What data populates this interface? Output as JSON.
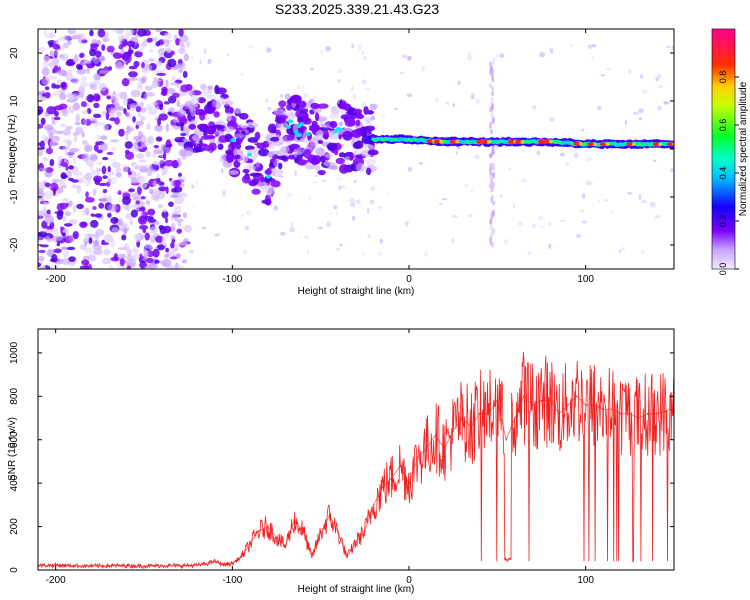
{
  "title": "S233.2025.339.21.43.G23",
  "colors": {
    "snr_line": "#ee2222",
    "spec_bg": "#ffffff",
    "axis": "#000000"
  },
  "chart_data": [
    {
      "type": "heatmap",
      "title": "S233.2025.339.21.43.G23",
      "xlabel": "Height of straight line (km)",
      "ylabel": "Frequency (Hz)",
      "xlim": [
        -210,
        150
      ],
      "ylim": [
        -25,
        25
      ],
      "xticks": [
        -200,
        -100,
        0,
        100
      ],
      "yticks": [
        -20,
        -10,
        0,
        10,
        20
      ],
      "xticklabels": [
        "-200",
        "-100",
        "0",
        "100"
      ],
      "yticklabels": [
        "-20",
        "-10",
        "0",
        "10",
        "20"
      ],
      "colorbar": {
        "label": "Normalized spectral amplitude",
        "range": [
          0,
          1
        ],
        "ticks": [
          0.0,
          0.2,
          0.4,
          0.6,
          0.8
        ],
        "ticklabels": [
          "0.0",
          "0.2",
          "0.4",
          "0.6",
          "0.8"
        ]
      },
      "signal_track": [
        {
          "x": -125,
          "freq": 6
        },
        {
          "x": -110,
          "freq": 7
        },
        {
          "x": -100,
          "freq": 2
        },
        {
          "x": -90,
          "freq": -1
        },
        {
          "x": -80,
          "freq": -5
        },
        {
          "x": -70,
          "freq": 5
        },
        {
          "x": -60,
          "freq": 4
        },
        {
          "x": -50,
          "freq": 2
        },
        {
          "x": -40,
          "freq": 3
        },
        {
          "x": -20,
          "freq": 2
        },
        {
          "x": 0,
          "freq": 2
        },
        {
          "x": 20,
          "freq": 1.5
        },
        {
          "x": 40,
          "freq": 1.5
        },
        {
          "x": 60,
          "freq": 1.5
        },
        {
          "x": 80,
          "freq": 1.5
        },
        {
          "x": 100,
          "freq": 1
        },
        {
          "x": 120,
          "freq": 1
        },
        {
          "x": 150,
          "freq": 1
        }
      ]
    },
    {
      "type": "line",
      "xlabel": "Height of straight line (km)",
      "ylabel": "SNR (10 * v/v)",
      "xlim": [
        -210,
        150
      ],
      "ylim": [
        0,
        1110
      ],
      "xticks": [
        -200,
        -100,
        0,
        100
      ],
      "yticks": [
        0,
        200,
        400,
        600,
        800,
        1000
      ],
      "xticklabels": [
        "-200",
        "-100",
        "0",
        "100"
      ],
      "yticklabels": [
        "0",
        "200",
        "400",
        "600",
        "800",
        "1000"
      ],
      "series": [
        {
          "name": "SNR",
          "x": [
            -210,
            -200,
            -190,
            -180,
            -170,
            -160,
            -150,
            -140,
            -130,
            -120,
            -115,
            -110,
            -105,
            -100,
            -95,
            -90,
            -85,
            -80,
            -75,
            -70,
            -65,
            -60,
            -55,
            -50,
            -45,
            -40,
            -35,
            -30,
            -25,
            -20,
            -15,
            -10,
            -5,
            0,
            5,
            10,
            15,
            20,
            25,
            30,
            35,
            40,
            45,
            50,
            55,
            60,
            65,
            70,
            75,
            80,
            85,
            90,
            95,
            100,
            105,
            110,
            115,
            120,
            125,
            130,
            135,
            140,
            145,
            150
          ],
          "values": [
            20,
            22,
            20,
            18,
            20,
            20,
            18,
            20,
            20,
            22,
            28,
            40,
            25,
            30,
            60,
            120,
            180,
            200,
            150,
            110,
            230,
            180,
            60,
            170,
            250,
            170,
            60,
            130,
            180,
            300,
            380,
            420,
            480,
            400,
            520,
            560,
            620,
            560,
            640,
            700,
            660,
            720,
            720,
            780,
            600,
            700,
            800,
            760,
            780,
            780,
            720,
            760,
            800,
            760,
            760,
            740,
            740,
            720,
            720,
            700,
            720,
            720,
            730,
            750
          ]
        }
      ]
    }
  ]
}
